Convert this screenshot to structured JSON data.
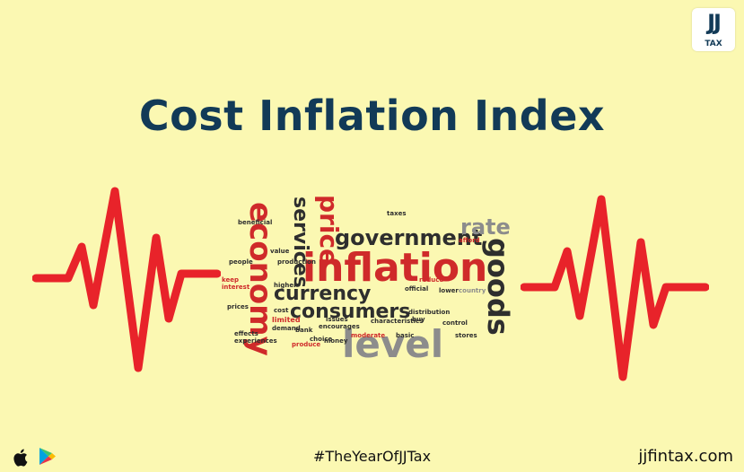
{
  "brand": {
    "logo_top": "JJ",
    "logo_bottom": "TAX"
  },
  "headline": "Cost Inflation Index",
  "word_cloud": [
    "economy",
    "price",
    "services",
    "government",
    "rate",
    "inflation",
    "goods",
    "currency",
    "consumers",
    "level",
    "people",
    "prices",
    "keep",
    "interest",
    "effects",
    "experiences",
    "limited",
    "higher",
    "cost",
    "demand",
    "choice",
    "produce",
    "moderate",
    "distribution",
    "basic",
    "afford",
    "country",
    "official",
    "reduce",
    "control",
    "stores",
    "buy",
    "taxes",
    "beneficial",
    "characteristics",
    "encourages",
    "issues",
    "lower",
    "bank",
    "money",
    "production",
    "value"
  ],
  "footer": {
    "hashtag": "#TheYearOfJJTax",
    "website": "jjfintax.com"
  },
  "icons": [
    "apple-icon",
    "play-store-icon"
  ],
  "colors": {
    "background": "#fbf8b2",
    "title": "#123a57",
    "pulse": "#e8232a",
    "cloud_red": "#cf2a2a",
    "cloud_dark": "#2e2e2e",
    "cloud_gray": "#8c8c8c"
  }
}
